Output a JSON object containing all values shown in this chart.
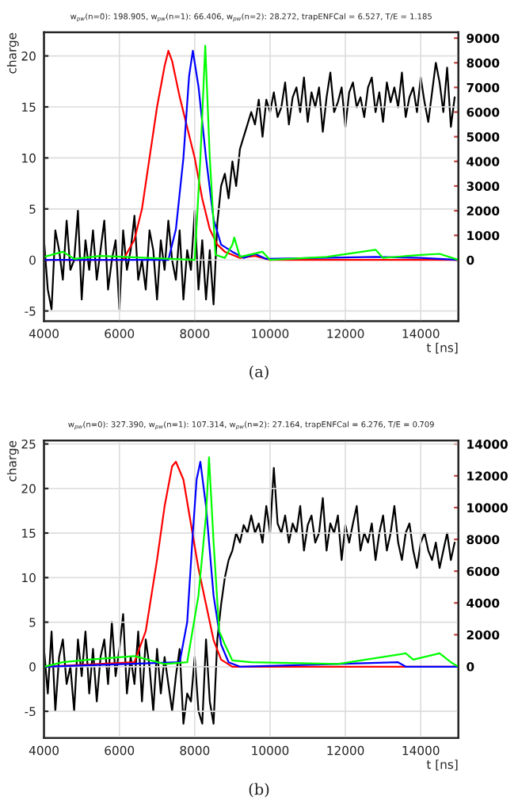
{
  "chart_data": [
    {
      "type": "line",
      "title": "w$_{pw}$(n=0): 198.905, w$_{pw}$(n=1): 66.406, w$_{pw}$(n=2): 28.272, trapENFCal = 6.527, T/E = 1.185",
      "xlabel": "t [ns]",
      "ylabel": "charge",
      "annotations": [
        "(a)"
      ],
      "xlim": [
        4000,
        15000
      ],
      "xticks": [
        4000,
        6000,
        8000,
        10000,
        12000,
        14000
      ],
      "ylim": [
        -6,
        22.3
      ],
      "yticks": [
        -5,
        0,
        5,
        10,
        15,
        20
      ],
      "y2lim": [
        -2480,
        9230
      ],
      "y2ticks": [
        0,
        1000,
        2000,
        3000,
        4000,
        5000,
        6000,
        7000,
        8000,
        9000
      ],
      "grid": true,
      "series": [
        {
          "color": "#000000",
          "axis": "y2",
          "x": [
            4000,
            4100,
            4200,
            4300,
            4400,
            4500,
            4600,
            4700,
            4800,
            4900,
            5000,
            5100,
            5200,
            5300,
            5400,
            5500,
            5600,
            5700,
            5800,
            5900,
            6000,
            6100,
            6200,
            6300,
            6400,
            6500,
            6600,
            6700,
            6800,
            6900,
            7000,
            7100,
            7200,
            7300,
            7400,
            7500,
            7600,
            7700,
            7800,
            7900,
            8000,
            8100,
            8200,
            8300,
            8400,
            8500,
            8600,
            8700,
            8800,
            8900,
            9000,
            9100,
            9200,
            9300,
            9400,
            9500,
            9600,
            9700,
            9800,
            9900,
            10000,
            10100,
            10200,
            10300,
            10400,
            10500,
            10600,
            10700,
            10800,
            10900,
            11000,
            11100,
            11200,
            11300,
            11400,
            11500,
            11600,
            11700,
            11800,
            11900,
            12000,
            12100,
            12200,
            12300,
            12400,
            12500,
            12600,
            12700,
            12800,
            12900,
            13000,
            13100,
            13200,
            13300,
            13400,
            13500,
            13600,
            13700,
            13800,
            13900,
            14000,
            14100,
            14200,
            14300,
            14400,
            14500,
            14600,
            14700,
            14800,
            14900
          ],
          "values": [
            800,
            -1200,
            -2000,
            1200,
            400,
            -800,
            1600,
            -400,
            0,
            2000,
            -1600,
            800,
            -400,
            1200,
            -800,
            400,
            1600,
            -1200,
            0,
            800,
            -2000,
            1200,
            -400,
            400,
            1800,
            -800,
            0,
            -1200,
            1200,
            400,
            -1600,
            800,
            -400,
            1600,
            0,
            -800,
            1200,
            -1600,
            400,
            -400,
            2000,
            -1200,
            800,
            -1600,
            400,
            -1800,
            1500,
            3000,
            3500,
            2500,
            4000,
            3000,
            4500,
            5000,
            5500,
            6000,
            5500,
            6500,
            5000,
            6500,
            6000,
            6800,
            5800,
            6200,
            7200,
            5500,
            6600,
            7000,
            6000,
            7400,
            5600,
            6800,
            6200,
            7000,
            5200,
            6600,
            7600,
            6000,
            6400,
            7000,
            5400,
            6800,
            7200,
            6200,
            6600,
            5800,
            7000,
            7400,
            6000,
            6800,
            5600,
            7200,
            6400,
            7000,
            6200,
            7600,
            5800,
            6600,
            7000,
            6000,
            7400,
            6400,
            5600,
            6800,
            8000,
            7200,
            6000,
            7800,
            5400,
            6600
          ]
        },
        {
          "color": "#ff0000",
          "x": [
            4000,
            6100,
            6400,
            6600,
            6800,
            7000,
            7200,
            7300,
            7400,
            7600,
            7800,
            8000,
            8200,
            8400,
            8600,
            8800,
            9000,
            9200,
            9600,
            9800,
            10000,
            15000
          ],
          "values": [
            0,
            0,
            2,
            5,
            10,
            15,
            19,
            20.5,
            19.5,
            16,
            13,
            10,
            6,
            3,
            1.5,
            0.8,
            0.5,
            0.2,
            0.4,
            0.2,
            0,
            0
          ]
        },
        {
          "color": "#0000ff",
          "x": [
            4000,
            7300,
            7500,
            7700,
            7850,
            7950,
            8100,
            8300,
            8500,
            8700,
            9000,
            9300,
            9600,
            9900,
            12800,
            14000,
            15000
          ],
          "values": [
            0,
            0,
            3,
            10,
            18,
            20.5,
            17,
            10,
            4,
            1.5,
            0.8,
            0.2,
            0.6,
            0.1,
            0.3,
            0.2,
            0
          ]
        },
        {
          "color": "#00ff00",
          "x": [
            4000,
            4500,
            4800,
            5500,
            8000,
            8150,
            8280,
            8400,
            8550,
            8800,
            9000,
            9050,
            9200,
            9800,
            10000,
            11500,
            12800,
            13000,
            14000,
            14500,
            15000
          ],
          "values": [
            0.3,
            0.8,
            0.1,
            0.4,
            0,
            10,
            21,
            10,
            0.5,
            0.2,
            1.5,
            2.2,
            0.3,
            0.8,
            0,
            0.3,
            1,
            0.2,
            0.5,
            0.6,
            0
          ]
        }
      ]
    },
    {
      "type": "line",
      "title": "w$_{pw}$(n=0): 327.390, w$_{pw}$(n=1): 107.314, w$_{pw}$(n=2): 27.164, trapENFCal = 6.276, T/E = 0.709",
      "xlabel": "t [ns]",
      "ylabel": "charge",
      "annotations": [
        "(b)"
      ],
      "xlim": [
        4000,
        15000
      ],
      "xticks": [
        4000,
        6000,
        8000,
        10000,
        12000,
        14000
      ],
      "ylim": [
        -8,
        25.4
      ],
      "yticks": [
        -5,
        0,
        5,
        10,
        15,
        20,
        25
      ],
      "y2lim": [
        -4500,
        14230
      ],
      "y2ticks": [
        0,
        2000,
        4000,
        6000,
        8000,
        10000,
        12000,
        14000
      ],
      "grid": true,
      "series": [
        {
          "color": "#000000",
          "axis": "y2",
          "x": [
            4000,
            4100,
            4200,
            4300,
            4400,
            4500,
            4600,
            4700,
            4800,
            4900,
            5000,
            5100,
            5200,
            5300,
            5400,
            5500,
            5600,
            5700,
            5800,
            5900,
            6000,
            6100,
            6200,
            6300,
            6400,
            6500,
            6600,
            6700,
            6800,
            6900,
            7000,
            7100,
            7200,
            7300,
            7400,
            7500,
            7600,
            7700,
            7800,
            7900,
            8000,
            8100,
            8200,
            8300,
            8400,
            8500,
            8600,
            8700,
            8800,
            8900,
            9000,
            9100,
            9200,
            9300,
            9400,
            9500,
            9600,
            9700,
            9800,
            9900,
            10000,
            10100,
            10200,
            10300,
            10400,
            10500,
            10600,
            10700,
            10800,
            10900,
            11000,
            11100,
            11200,
            11300,
            11400,
            11500,
            11600,
            11700,
            11800,
            11900,
            12000,
            12100,
            12200,
            12300,
            12400,
            12500,
            12600,
            12700,
            12800,
            12900,
            13000,
            13100,
            13200,
            13300,
            13400,
            13500,
            13600,
            13700,
            13800,
            13900,
            14000,
            14100,
            14200,
            14300,
            14400,
            14500,
            14600,
            14700,
            14800,
            14900
          ],
          "values": [
            1100,
            -1700,
            2200,
            -2800,
            600,
            1700,
            -1100,
            0,
            -2800,
            1700,
            -600,
            2200,
            -1700,
            1100,
            -2200,
            600,
            1700,
            -1100,
            2800,
            -600,
            1100,
            3300,
            -1700,
            600,
            -1100,
            2200,
            -2200,
            1700,
            0,
            -2800,
            1100,
            -1700,
            600,
            -1100,
            -2800,
            -600,
            1100,
            -3600,
            -1700,
            -2200,
            600,
            -2800,
            -3600,
            1700,
            -2200,
            -3600,
            1700,
            3900,
            5600,
            6700,
            7300,
            8400,
            7800,
            8900,
            8400,
            9500,
            8400,
            9000,
            7800,
            10100,
            8400,
            12500,
            9000,
            8400,
            9500,
            7800,
            9000,
            8400,
            10100,
            7300,
            8900,
            9500,
            7800,
            8400,
            10600,
            7300,
            9000,
            8400,
            9500,
            6700,
            8900,
            7800,
            9000,
            10100,
            7300,
            8400,
            7800,
            9000,
            6700,
            8400,
            9500,
            7300,
            8400,
            10100,
            7800,
            6700,
            8400,
            9000,
            7300,
            6200,
            7800,
            8400,
            7300,
            6700,
            7800,
            6200,
            7300,
            8400,
            6700,
            7800
          ]
        },
        {
          "color": "#ff0000",
          "x": [
            4000,
            6400,
            6700,
            7000,
            7200,
            7400,
            7500,
            7700,
            7900,
            8100,
            8300,
            8500,
            8700,
            9000,
            15000
          ],
          "values": [
            0,
            0.5,
            4,
            12,
            18,
            22.5,
            23,
            21,
            16,
            11,
            7,
            3,
            0.8,
            0,
            0
          ]
        },
        {
          "color": "#0000ff",
          "x": [
            4000,
            7600,
            7800,
            7950,
            8050,
            8150,
            8300,
            8500,
            8700,
            8900,
            9200,
            13400,
            13600,
            15000
          ],
          "values": [
            0,
            0.5,
            5,
            15,
            21,
            23,
            18,
            8,
            2.5,
            0.5,
            0,
            0.5,
            0,
            0
          ]
        },
        {
          "color": "#00ff00",
          "x": [
            4000,
            4500,
            5200,
            6400,
            7200,
            7800,
            8100,
            8300,
            8380,
            8500,
            8650,
            8800,
            9000,
            9500,
            11800,
            13600,
            13800,
            14500,
            14800,
            15000
          ],
          "values": [
            0,
            0.5,
            0.8,
            1.2,
            0.3,
            0.5,
            8,
            17,
            23.5,
            14,
            4,
            2.5,
            0.7,
            0.5,
            0.3,
            1.5,
            0.8,
            1.5,
            0.5,
            0
          ]
        }
      ]
    }
  ]
}
